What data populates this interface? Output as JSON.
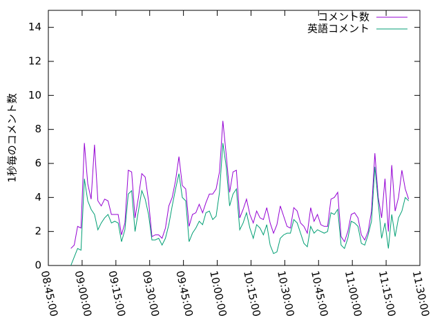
{
  "chart_data": {
    "type": "line",
    "y_label": "1秒毎のコメント数",
    "x": [
      "08:55:00",
      "08:56:30",
      "08:58:00",
      "08:59:30",
      "09:01:00",
      "09:02:30",
      "09:04:00",
      "09:05:30",
      "09:07:00",
      "09:08:30",
      "09:10:00",
      "09:11:30",
      "09:13:00",
      "09:14:30",
      "09:16:00",
      "09:17:30",
      "09:19:00",
      "09:20:30",
      "09:22:00",
      "09:23:30",
      "09:25:00",
      "09:26:30",
      "09:28:00",
      "09:29:30",
      "09:31:00",
      "09:32:30",
      "09:34:00",
      "09:35:30",
      "09:37:00",
      "09:38:30",
      "09:40:00",
      "09:41:30",
      "09:43:00",
      "09:44:30",
      "09:46:00",
      "09:47:30",
      "09:49:00",
      "09:50:30",
      "09:52:00",
      "09:53:30",
      "09:55:00",
      "09:56:30",
      "09:58:00",
      "09:59:30",
      "10:01:00",
      "10:02:30",
      "10:04:00",
      "10:05:30",
      "10:07:00",
      "10:08:30",
      "10:10:00",
      "10:11:30",
      "10:13:00",
      "10:14:30",
      "10:16:00",
      "10:17:30",
      "10:19:00",
      "10:20:30",
      "10:22:00",
      "10:23:30",
      "10:25:00",
      "10:26:30",
      "10:28:00",
      "10:29:30",
      "10:31:00",
      "10:32:30",
      "10:34:00",
      "10:35:30",
      "10:37:00",
      "10:38:30",
      "10:40:00",
      "10:41:30",
      "10:43:00",
      "10:44:30",
      "10:46:00",
      "10:47:30",
      "10:49:00",
      "10:50:30",
      "10:52:00",
      "10:53:30",
      "10:55:00",
      "10:56:30",
      "10:58:00",
      "10:59:30",
      "11:01:00",
      "11:02:30",
      "11:04:00",
      "11:05:30",
      "11:07:00",
      "11:08:30",
      "11:10:00",
      "11:11:30",
      "11:13:00",
      "11:14:30",
      "11:16:00",
      "11:17:30",
      "11:19:00",
      "11:20:30",
      "11:22:00",
      "11:23:30",
      "11:25:00"
    ],
    "series": [
      {
        "name": "コメント数",
        "color": "#9400d3",
        "values": [
          1.0,
          1.2,
          2.3,
          2.2,
          7.2,
          4.8,
          3.9,
          7.1,
          3.8,
          3.5,
          3.9,
          3.8,
          3.0,
          3.0,
          3.0,
          1.8,
          2.5,
          5.6,
          5.5,
          2.8,
          4.0,
          5.4,
          5.2,
          3.8,
          1.7,
          1.8,
          1.8,
          1.6,
          2.2,
          3.5,
          4.0,
          5.0,
          6.4,
          4.7,
          4.5,
          2.3,
          3.0,
          3.1,
          3.6,
          3.1,
          3.7,
          4.2,
          4.2,
          4.5,
          5.5,
          8.5,
          6.5,
          4.3,
          5.5,
          5.6,
          2.8,
          3.3,
          3.9,
          3.0,
          2.5,
          3.2,
          2.8,
          2.7,
          3.4,
          2.5,
          1.9,
          2.4,
          3.5,
          2.9,
          2.3,
          2.2,
          3.4,
          3.2,
          2.5,
          2.3,
          1.9,
          3.4,
          2.6,
          3.0,
          2.4,
          2.3,
          2.3,
          3.9,
          4.0,
          4.3,
          1.7,
          1.4,
          2.0,
          3.0,
          3.1,
          2.8,
          1.8,
          1.5,
          2.0,
          3.2,
          6.6,
          4.0,
          2.8,
          5.1,
          2.0,
          5.9,
          3.2,
          4.0,
          5.6,
          4.5,
          3.9
        ]
      },
      {
        "name": "英語コメント",
        "color": "#009e73",
        "values": [
          0.0,
          0.5,
          1.0,
          0.9,
          5.1,
          3.8,
          3.3,
          3.0,
          2.1,
          2.5,
          2.8,
          3.0,
          2.5,
          2.6,
          2.5,
          1.4,
          2.1,
          4.2,
          4.4,
          2.0,
          3.2,
          4.4,
          3.9,
          3.0,
          1.5,
          1.5,
          1.6,
          1.2,
          1.6,
          2.4,
          3.5,
          4.5,
          5.4,
          4.0,
          3.8,
          1.4,
          1.9,
          2.2,
          2.6,
          2.4,
          3.1,
          3.2,
          2.7,
          2.9,
          4.3,
          7.2,
          5.8,
          3.5,
          4.2,
          4.5,
          2.1,
          2.5,
          3.1,
          2.2,
          1.6,
          2.4,
          2.2,
          1.8,
          2.4,
          1.2,
          0.7,
          0.8,
          1.6,
          1.8,
          1.9,
          1.9,
          2.7,
          2.5,
          1.9,
          1.3,
          1.1,
          2.3,
          1.9,
          2.1,
          2.0,
          1.9,
          2.0,
          3.1,
          3.0,
          3.3,
          1.2,
          1.0,
          1.6,
          2.6,
          2.5,
          2.3,
          1.3,
          1.2,
          1.8,
          2.6,
          5.8,
          3.7,
          1.6,
          2.5,
          1.0,
          3.0,
          1.7,
          2.8,
          3.2,
          4.0,
          3.8
        ]
      }
    ],
    "xlim": [
      "08:45:00",
      "11:30:00"
    ],
    "xticks": [
      "08:45:00",
      "09:00:00",
      "09:15:00",
      "09:30:00",
      "09:45:00",
      "10:00:00",
      "10:15:00",
      "10:30:00",
      "10:45:00",
      "11:00:00",
      "11:15:00",
      "11:30:00"
    ],
    "ylim": [
      0,
      15
    ],
    "yticks": [
      0,
      2,
      4,
      6,
      8,
      10,
      12,
      14
    ],
    "legend": "top-right"
  }
}
